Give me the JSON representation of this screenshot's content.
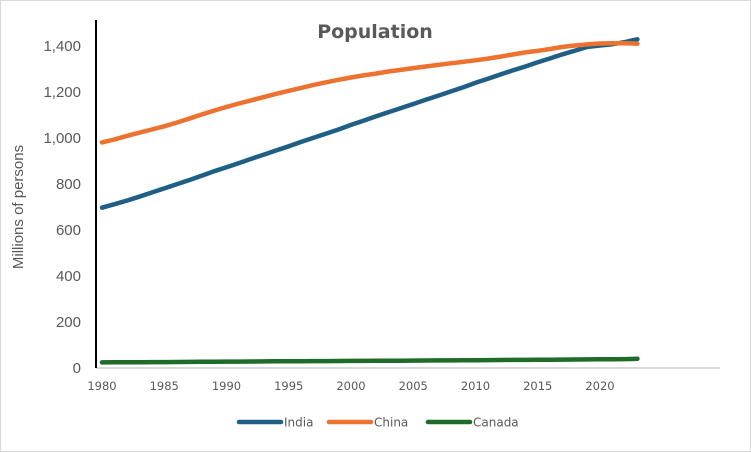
{
  "chart_data": {
    "type": "line",
    "title": "Population",
    "xlabel": "",
    "ylabel": "Millions of persons",
    "xlim": [
      1980,
      2029
    ],
    "ylim": [
      0,
      1400
    ],
    "y_ticks": [
      0,
      200,
      400,
      600,
      800,
      1000,
      1200,
      1400
    ],
    "y_tick_labels": [
      "0",
      "200",
      "400",
      "600",
      "800",
      "1,000",
      "1,200",
      "1,400"
    ],
    "x_ticks": [
      1980,
      1985,
      1990,
      1995,
      2000,
      2005,
      2010,
      2015,
      2020
    ],
    "x_tick_labels": [
      "1980",
      "1985",
      "1990",
      "1995",
      "2000",
      "2005",
      "2010",
      "2015",
      "2020"
    ],
    "grid": false,
    "legend_position": "bottom",
    "x": [
      1980,
      1981,
      1982,
      1983,
      1984,
      1985,
      1986,
      1987,
      1988,
      1989,
      1990,
      1991,
      1992,
      1993,
      1994,
      1995,
      1996,
      1997,
      1998,
      1999,
      2000,
      2001,
      2002,
      2003,
      2004,
      2005,
      2006,
      2007,
      2008,
      2009,
      2010,
      2011,
      2012,
      2013,
      2014,
      2015,
      2016,
      2017,
      2018,
      2019,
      2020,
      2021,
      2022,
      2023
    ],
    "series": [
      {
        "name": "India",
        "color": "#1f5f86",
        "values": [
          697,
          712,
          728,
          745,
          763,
          781,
          799,
          817,
          836,
          855,
          873,
          891,
          910,
          928,
          946,
          964,
          983,
          1001,
          1019,
          1037,
          1057,
          1075,
          1094,
          1112,
          1130,
          1148,
          1166,
          1184,
          1202,
          1220,
          1240,
          1258,
          1276,
          1294,
          1311,
          1329,
          1346,
          1364,
          1380,
          1396,
          1402,
          1408,
          1417,
          1429
        ]
      },
      {
        "name": "China",
        "color": "#ed7230",
        "values": [
          981,
          994,
          1009,
          1023,
          1037,
          1051,
          1067,
          1084,
          1102,
          1119,
          1135,
          1150,
          1164,
          1178,
          1192,
          1205,
          1218,
          1231,
          1242,
          1253,
          1263,
          1272,
          1280,
          1289,
          1296,
          1304,
          1311,
          1318,
          1325,
          1331,
          1338,
          1345,
          1354,
          1363,
          1372,
          1379,
          1387,
          1396,
          1402,
          1407,
          1411,
          1412,
          1412,
          1410
        ]
      },
      {
        "name": "Canada",
        "color": "#1e6b2a",
        "values": [
          24.5,
          24.8,
          25.1,
          25.4,
          25.6,
          25.8,
          26.1,
          26.4,
          26.8,
          27.3,
          27.7,
          28.0,
          28.4,
          28.7,
          29.0,
          29.3,
          29.6,
          29.9,
          30.2,
          30.4,
          30.7,
          31.0,
          31.4,
          31.6,
          31.9,
          32.2,
          32.6,
          32.9,
          33.2,
          33.6,
          34.0,
          34.3,
          34.7,
          35.1,
          35.4,
          35.7,
          36.1,
          36.5,
          37.1,
          37.6,
          38.0,
          38.2,
          38.9,
          40.1
        ]
      }
    ]
  }
}
